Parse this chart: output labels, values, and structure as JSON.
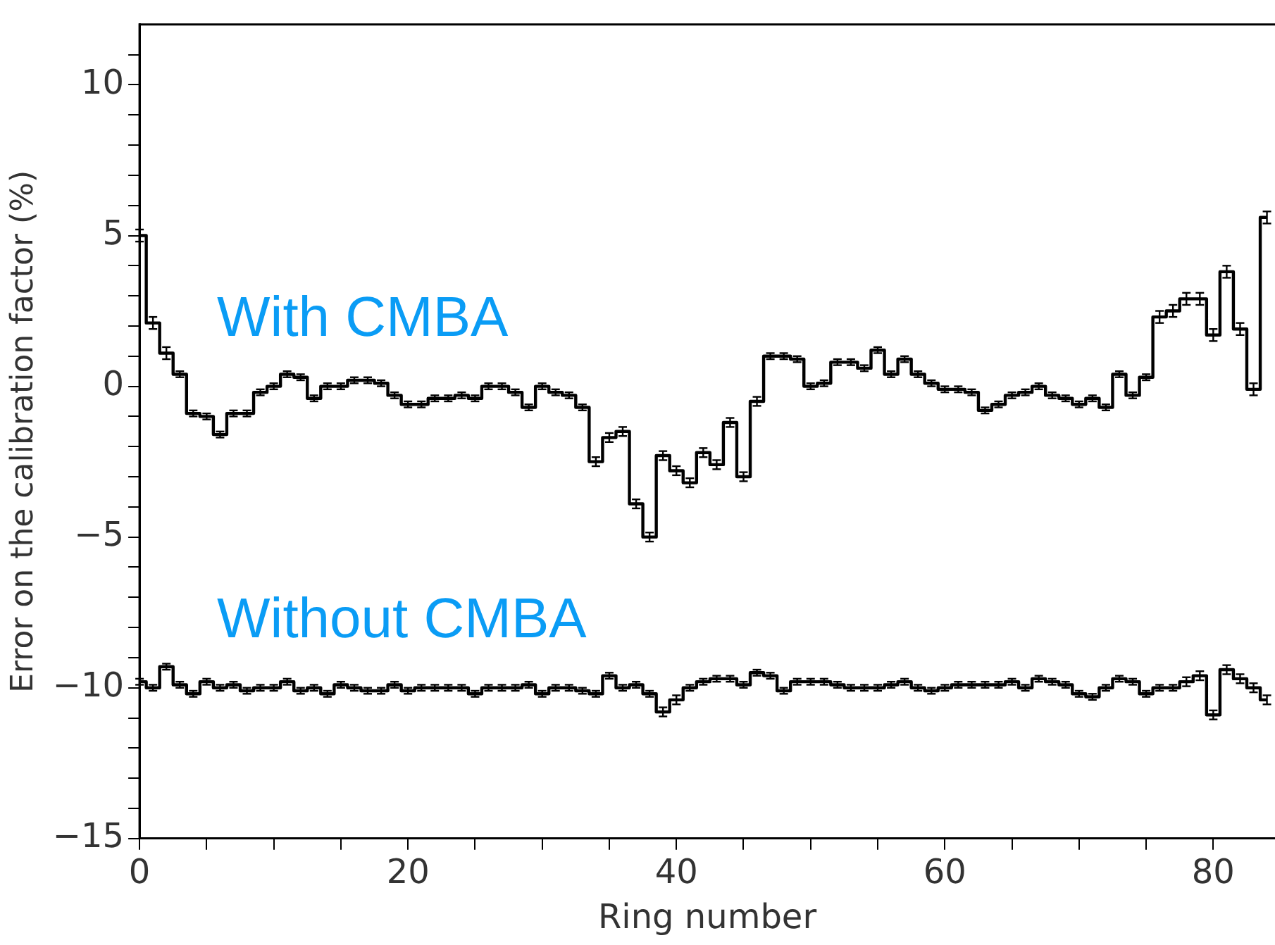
{
  "chart_data": {
    "type": "step",
    "xlabel": "Ring number",
    "ylabel": "Error on the calibration factor (%)",
    "x": [
      0,
      1,
      2,
      3,
      4,
      5,
      6,
      7,
      8,
      9,
      10,
      11,
      12,
      13,
      14,
      15,
      16,
      17,
      18,
      19,
      20,
      21,
      22,
      23,
      24,
      25,
      26,
      27,
      28,
      29,
      30,
      31,
      32,
      33,
      34,
      35,
      36,
      37,
      38,
      39,
      40,
      41,
      42,
      43,
      44,
      45,
      46,
      47,
      48,
      49,
      50,
      51,
      52,
      53,
      54,
      55,
      56,
      57,
      58,
      59,
      60,
      61,
      62,
      63,
      64,
      65,
      66,
      67,
      68,
      69,
      70,
      71,
      72,
      73,
      74,
      75,
      76,
      77,
      78,
      79,
      80,
      81,
      82,
      83,
      84
    ],
    "series": [
      {
        "name": "With CMBA",
        "color": "#000000",
        "values": [
          5.0,
          2.1,
          1.1,
          0.4,
          -0.9,
          -1.0,
          -1.6,
          -0.9,
          -0.9,
          -0.2,
          0.0,
          0.4,
          0.3,
          -0.4,
          0.0,
          0.0,
          0.2,
          0.2,
          0.1,
          -0.3,
          -0.6,
          -0.6,
          -0.4,
          -0.4,
          -0.3,
          -0.4,
          0.0,
          0.0,
          -0.2,
          -0.7,
          0.0,
          -0.2,
          -0.3,
          -0.7,
          -2.5,
          -1.7,
          -1.5,
          -3.9,
          -5.0,
          -2.3,
          -2.8,
          -3.2,
          -2.2,
          -2.6,
          -1.2,
          -3.0,
          -0.5,
          1.0,
          1.0,
          0.9,
          0.0,
          0.1,
          0.8,
          0.8,
          0.6,
          1.2,
          0.4,
          0.9,
          0.4,
          0.1,
          -0.1,
          -0.1,
          -0.2,
          -0.8,
          -0.6,
          -0.3,
          -0.2,
          0.0,
          -0.3,
          -0.4,
          -0.6,
          -0.4,
          -0.7,
          0.4,
          -0.3,
          0.3,
          2.3,
          2.5,
          2.9,
          2.9,
          1.7,
          3.8,
          1.9,
          -0.1,
          5.6
        ],
        "errors": [
          0.2,
          0.2,
          0.2,
          0.1,
          0.1,
          0.1,
          0.1,
          0.1,
          0.1,
          0.1,
          0.1,
          0.1,
          0.1,
          0.1,
          0.1,
          0.1,
          0.1,
          0.1,
          0.1,
          0.1,
          0.1,
          0.1,
          0.1,
          0.1,
          0.1,
          0.1,
          0.1,
          0.1,
          0.1,
          0.1,
          0.1,
          0.1,
          0.1,
          0.1,
          0.15,
          0.15,
          0.15,
          0.15,
          0.15,
          0.15,
          0.15,
          0.15,
          0.15,
          0.15,
          0.15,
          0.15,
          0.15,
          0.1,
          0.1,
          0.1,
          0.1,
          0.1,
          0.1,
          0.1,
          0.1,
          0.1,
          0.1,
          0.1,
          0.1,
          0.1,
          0.1,
          0.1,
          0.1,
          0.1,
          0.1,
          0.1,
          0.1,
          0.1,
          0.1,
          0.1,
          0.1,
          0.1,
          0.1,
          0.1,
          0.1,
          0.1,
          0.2,
          0.2,
          0.2,
          0.2,
          0.2,
          0.2,
          0.2,
          0.2,
          0.2
        ]
      },
      {
        "name": "Without CMBA",
        "color": "#000000",
        "values": [
          -9.8,
          -10.0,
          -9.3,
          -9.9,
          -10.2,
          -9.8,
          -10.0,
          -9.9,
          -10.1,
          -10.0,
          -10.0,
          -9.8,
          -10.1,
          -10.0,
          -10.2,
          -9.9,
          -10.0,
          -10.1,
          -10.1,
          -9.9,
          -10.1,
          -10.0,
          -10.0,
          -10.0,
          -10.0,
          -10.2,
          -10.0,
          -10.0,
          -10.0,
          -9.9,
          -10.2,
          -10.0,
          -10.0,
          -10.1,
          -10.2,
          -9.6,
          -10.0,
          -9.9,
          -10.2,
          -10.8,
          -10.4,
          -10.0,
          -9.8,
          -9.7,
          -9.7,
          -9.9,
          -9.5,
          -9.6,
          -10.1,
          -9.8,
          -9.8,
          -9.8,
          -9.9,
          -10.0,
          -10.0,
          -10.0,
          -9.9,
          -9.8,
          -10.0,
          -10.1,
          -10.0,
          -9.9,
          -9.9,
          -9.9,
          -9.9,
          -9.8,
          -10.0,
          -9.7,
          -9.8,
          -9.9,
          -10.2,
          -10.3,
          -10.0,
          -9.7,
          -9.8,
          -10.2,
          -10.0,
          -10.0,
          -9.8,
          -9.6,
          -10.9,
          -9.4,
          -9.7,
          -10.0,
          -10.4
        ],
        "errors": [
          0.1,
          0.1,
          0.1,
          0.1,
          0.1,
          0.1,
          0.1,
          0.1,
          0.1,
          0.1,
          0.1,
          0.1,
          0.1,
          0.1,
          0.1,
          0.1,
          0.1,
          0.1,
          0.1,
          0.1,
          0.1,
          0.1,
          0.1,
          0.1,
          0.1,
          0.1,
          0.1,
          0.1,
          0.1,
          0.1,
          0.1,
          0.1,
          0.1,
          0.1,
          0.1,
          0.1,
          0.1,
          0.1,
          0.1,
          0.15,
          0.15,
          0.1,
          0.1,
          0.1,
          0.1,
          0.1,
          0.1,
          0.1,
          0.1,
          0.1,
          0.1,
          0.1,
          0.1,
          0.1,
          0.1,
          0.1,
          0.1,
          0.1,
          0.1,
          0.1,
          0.1,
          0.1,
          0.1,
          0.1,
          0.1,
          0.1,
          0.1,
          0.1,
          0.1,
          0.1,
          0.1,
          0.1,
          0.1,
          0.1,
          0.1,
          0.1,
          0.1,
          0.1,
          0.15,
          0.15,
          0.15,
          0.15,
          0.15,
          0.15,
          0.15
        ]
      }
    ],
    "xlim": [
      0,
      84.6
    ],
    "xticks": [
      0,
      {
        "value": 5,
        "label": null
      },
      {
        "value": 10,
        "label": null
      },
      {
        "value": 15,
        "label": null
      },
      20,
      {
        "value": 25,
        "label": null
      },
      {
        "value": 30,
        "label": null
      },
      {
        "value": 35,
        "label": null
      },
      40,
      {
        "value": 45,
        "label": null
      },
      {
        "value": 50,
        "label": null
      },
      {
        "value": 55,
        "label": null
      },
      60,
      {
        "value": 65,
        "label": null
      },
      {
        "value": 70,
        "label": null
      },
      {
        "value": 75,
        "label": null
      },
      80
    ],
    "ylim": [
      -15,
      12
    ],
    "yticks": [
      -15,
      {
        "value": -14,
        "label": null
      },
      {
        "value": -13,
        "label": null
      },
      {
        "value": -12,
        "label": null
      },
      {
        "value": -11,
        "label": null
      },
      -10,
      {
        "value": -9,
        "label": null
      },
      {
        "value": -8,
        "label": null
      },
      {
        "value": -7,
        "label": null
      },
      {
        "value": -6,
        "label": null
      },
      -5,
      {
        "value": -4,
        "label": null
      },
      {
        "value": -3,
        "label": null
      },
      {
        "value": -2,
        "label": null
      },
      {
        "value": -1,
        "label": null
      },
      0,
      {
        "value": 1,
        "label": null
      },
      {
        "value": 2,
        "label": null
      },
      {
        "value": 3,
        "label": null
      },
      {
        "value": 4,
        "label": null
      },
      5,
      {
        "value": 6,
        "label": null
      },
      {
        "value": 7,
        "label": null
      },
      {
        "value": 8,
        "label": null
      },
      {
        "value": 9,
        "label": null
      },
      10,
      {
        "value": 11,
        "label": null
      }
    ],
    "grid": false,
    "legend": false
  }
}
